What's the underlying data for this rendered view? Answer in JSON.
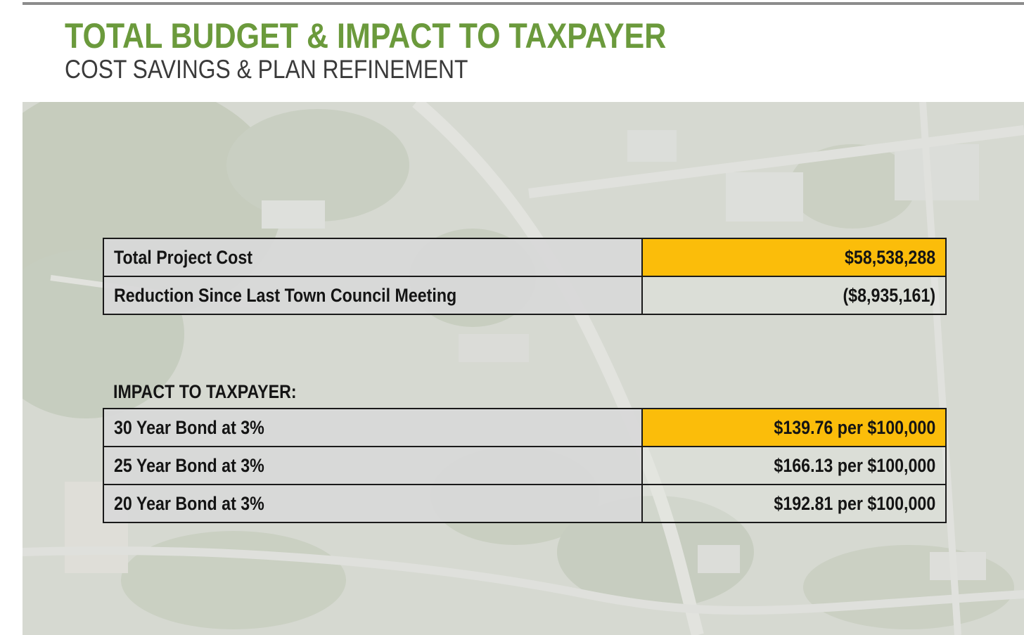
{
  "colors": {
    "title": "#6b9a3c",
    "subtitle": "#3a3a3a",
    "highlight": "#fbbd0a",
    "label_fill": "#d8d8d8",
    "border": "#1a1a1a"
  },
  "header": {
    "title": "TOTAL BUDGET & IMPACT TO TAXPAYER",
    "subtitle": "COST SAVINGS & PLAN REFINEMENT"
  },
  "budget_table": {
    "rows": [
      {
        "label": "Total Project Cost",
        "value": "$58,538,288",
        "highlight": true
      },
      {
        "label": "Reduction Since Last Town Council Meeting",
        "value": "($8,935,161)",
        "highlight": false
      }
    ]
  },
  "impact_section": {
    "heading": "IMPACT TO TAXPAYER:",
    "rows": [
      {
        "label": "30 Year Bond at 3%",
        "value": "$139.76 per $100,000",
        "highlight": true
      },
      {
        "label": "25 Year Bond at 3%",
        "value": "$166.13 per $100,000",
        "highlight": false
      },
      {
        "label": "20 Year Bond at 3%",
        "value": "$192.81 per $100,000",
        "highlight": false
      }
    ]
  },
  "background": {
    "image": "aerial-map-photo"
  }
}
